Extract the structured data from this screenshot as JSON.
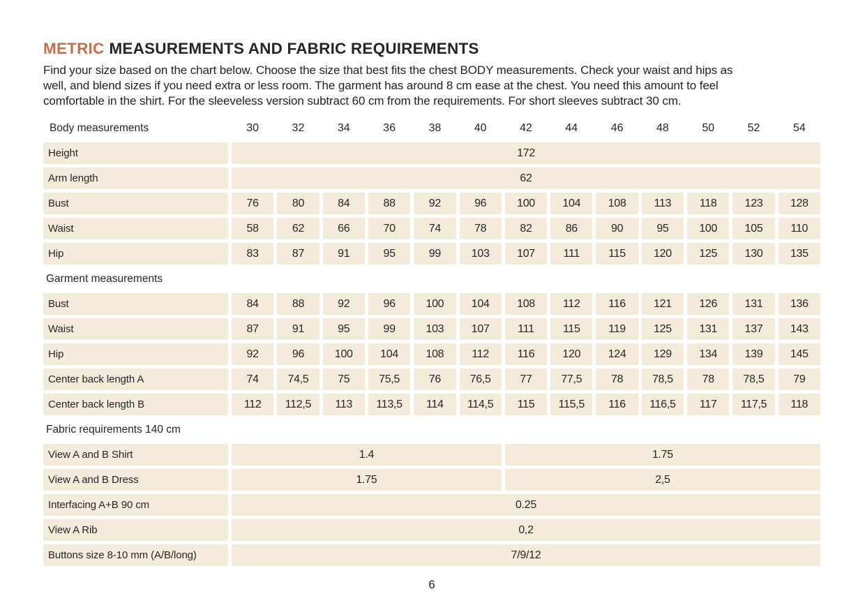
{
  "title": {
    "accent": "METRIC",
    "rest": "MEASUREMENTS AND FABRIC REQUIREMENTS"
  },
  "intro": {
    "lines": [
      "Find your size based on the chart below. Choose the size that best fits the chest BODY measurements.  Check your waist and hips as",
      "well, and blend sizes if you need extra or less room. The garment has around 8 cm ease at the chest. You need this amount to feel",
      "comfortable in the shirt. For the sleeveless version subtract 60 cm from the requirements. For short sleeves subtract 30 cm."
    ]
  },
  "colors": {
    "accent": "#c3704c",
    "cell_bg": "#f5ebdb",
    "text": "#262626"
  },
  "table": {
    "sizes_header_label": "Body measurements",
    "sizes": [
      "30",
      "32",
      "34",
      "36",
      "38",
      "40",
      "42",
      "44",
      "46",
      "48",
      "50",
      "52",
      "54"
    ],
    "rows": [
      {
        "type": "span",
        "label": "Height",
        "value": "172",
        "span": 13
      },
      {
        "type": "span",
        "label": "Arm length",
        "value": "62",
        "span": 13
      },
      {
        "type": "cells",
        "label": "Bust",
        "values": [
          "76",
          "80",
          "84",
          "88",
          "92",
          "96",
          "100",
          "104",
          "108",
          "113",
          "118",
          "123",
          "128"
        ]
      },
      {
        "type": "cells",
        "label": "Waist",
        "values": [
          "58",
          "62",
          "66",
          "70",
          "74",
          "78",
          "82",
          "86",
          "90",
          "95",
          "100",
          "105",
          "110"
        ]
      },
      {
        "type": "cells",
        "label": "Hip",
        "values": [
          "83",
          "87",
          "91",
          "95",
          "99",
          "103",
          "107",
          "111",
          "115",
          "120",
          "125",
          "130",
          "135"
        ]
      },
      {
        "type": "section",
        "label": "Garment measurements"
      },
      {
        "type": "cells",
        "label": "Bust",
        "values": [
          "84",
          "88",
          "92",
          "96",
          "100",
          "104",
          "108",
          "112",
          "116",
          "121",
          "126",
          "131",
          "136"
        ]
      },
      {
        "type": "cells",
        "label": "Waist",
        "values": [
          "87",
          "91",
          "95",
          "99",
          "103",
          "107",
          "111",
          "115",
          "119",
          "125",
          "131",
          "137",
          "143"
        ]
      },
      {
        "type": "cells",
        "label": "Hip",
        "values": [
          "92",
          "96",
          "100",
          "104",
          "108",
          "112",
          "116",
          "120",
          "124",
          "129",
          "134",
          "139",
          "145"
        ]
      },
      {
        "type": "cells",
        "label": "Center back length A",
        "values": [
          "74",
          "74,5",
          "75",
          "75,5",
          "76",
          "76,5",
          "77",
          "77,5",
          "78",
          "78,5",
          "78",
          "78,5",
          "79"
        ]
      },
      {
        "type": "cells",
        "label": "Center back length B",
        "values": [
          "112",
          "112,5",
          "113",
          "113,5",
          "114",
          "114,5",
          "115",
          "115,5",
          "116",
          "116,5",
          "117",
          "117,5",
          "118"
        ]
      },
      {
        "type": "section",
        "label": "Fabric requirements 140 cm"
      },
      {
        "type": "split",
        "label": "View A and B Shirt",
        "values": [
          "1.4",
          "1.75"
        ],
        "spans": [
          6,
          7
        ]
      },
      {
        "type": "split",
        "label": "View A and B Dress",
        "values": [
          "1.75",
          "2,5"
        ],
        "spans": [
          6,
          7
        ]
      },
      {
        "type": "span",
        "label": "Interfacing  A+B 90 cm",
        "value": "0.25",
        "span": 13
      },
      {
        "type": "span",
        "label": "View A Rib",
        "value": "0,2",
        "span": 13
      },
      {
        "type": "span",
        "label": "Buttons size 8-10 mm (A/B/long)",
        "value": "7/9/12",
        "span": 13
      }
    ]
  },
  "page_number": "6"
}
